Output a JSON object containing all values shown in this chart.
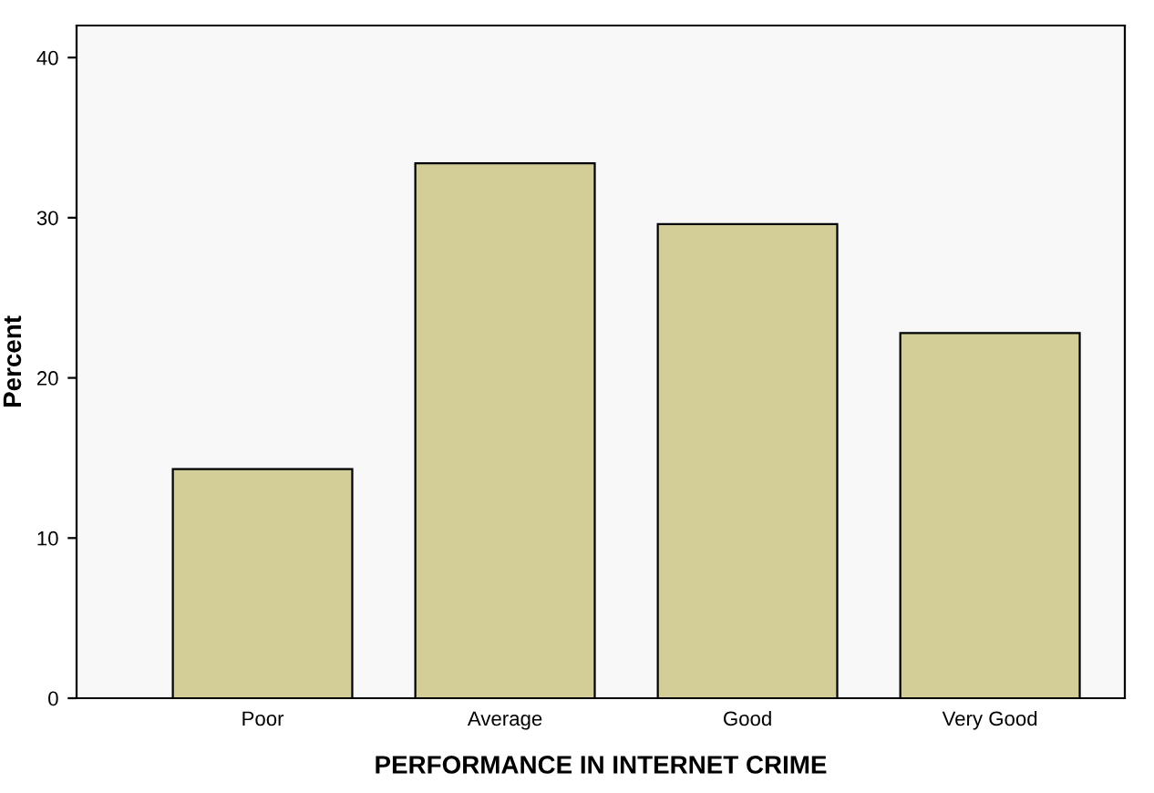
{
  "chart_data": {
    "type": "bar",
    "xlabel": "PERFORMANCE IN INTERNET CRIME",
    "ylabel": "Percent",
    "categories": [
      "Poor",
      "Average",
      "Good",
      "Very Good"
    ],
    "values": [
      14.3,
      33.4,
      29.6,
      22.8
    ],
    "color": "#d3ce97",
    "ylim": [
      0,
      42
    ],
    "yticks": [
      0,
      10,
      20,
      30,
      40
    ],
    "grid": false
  }
}
